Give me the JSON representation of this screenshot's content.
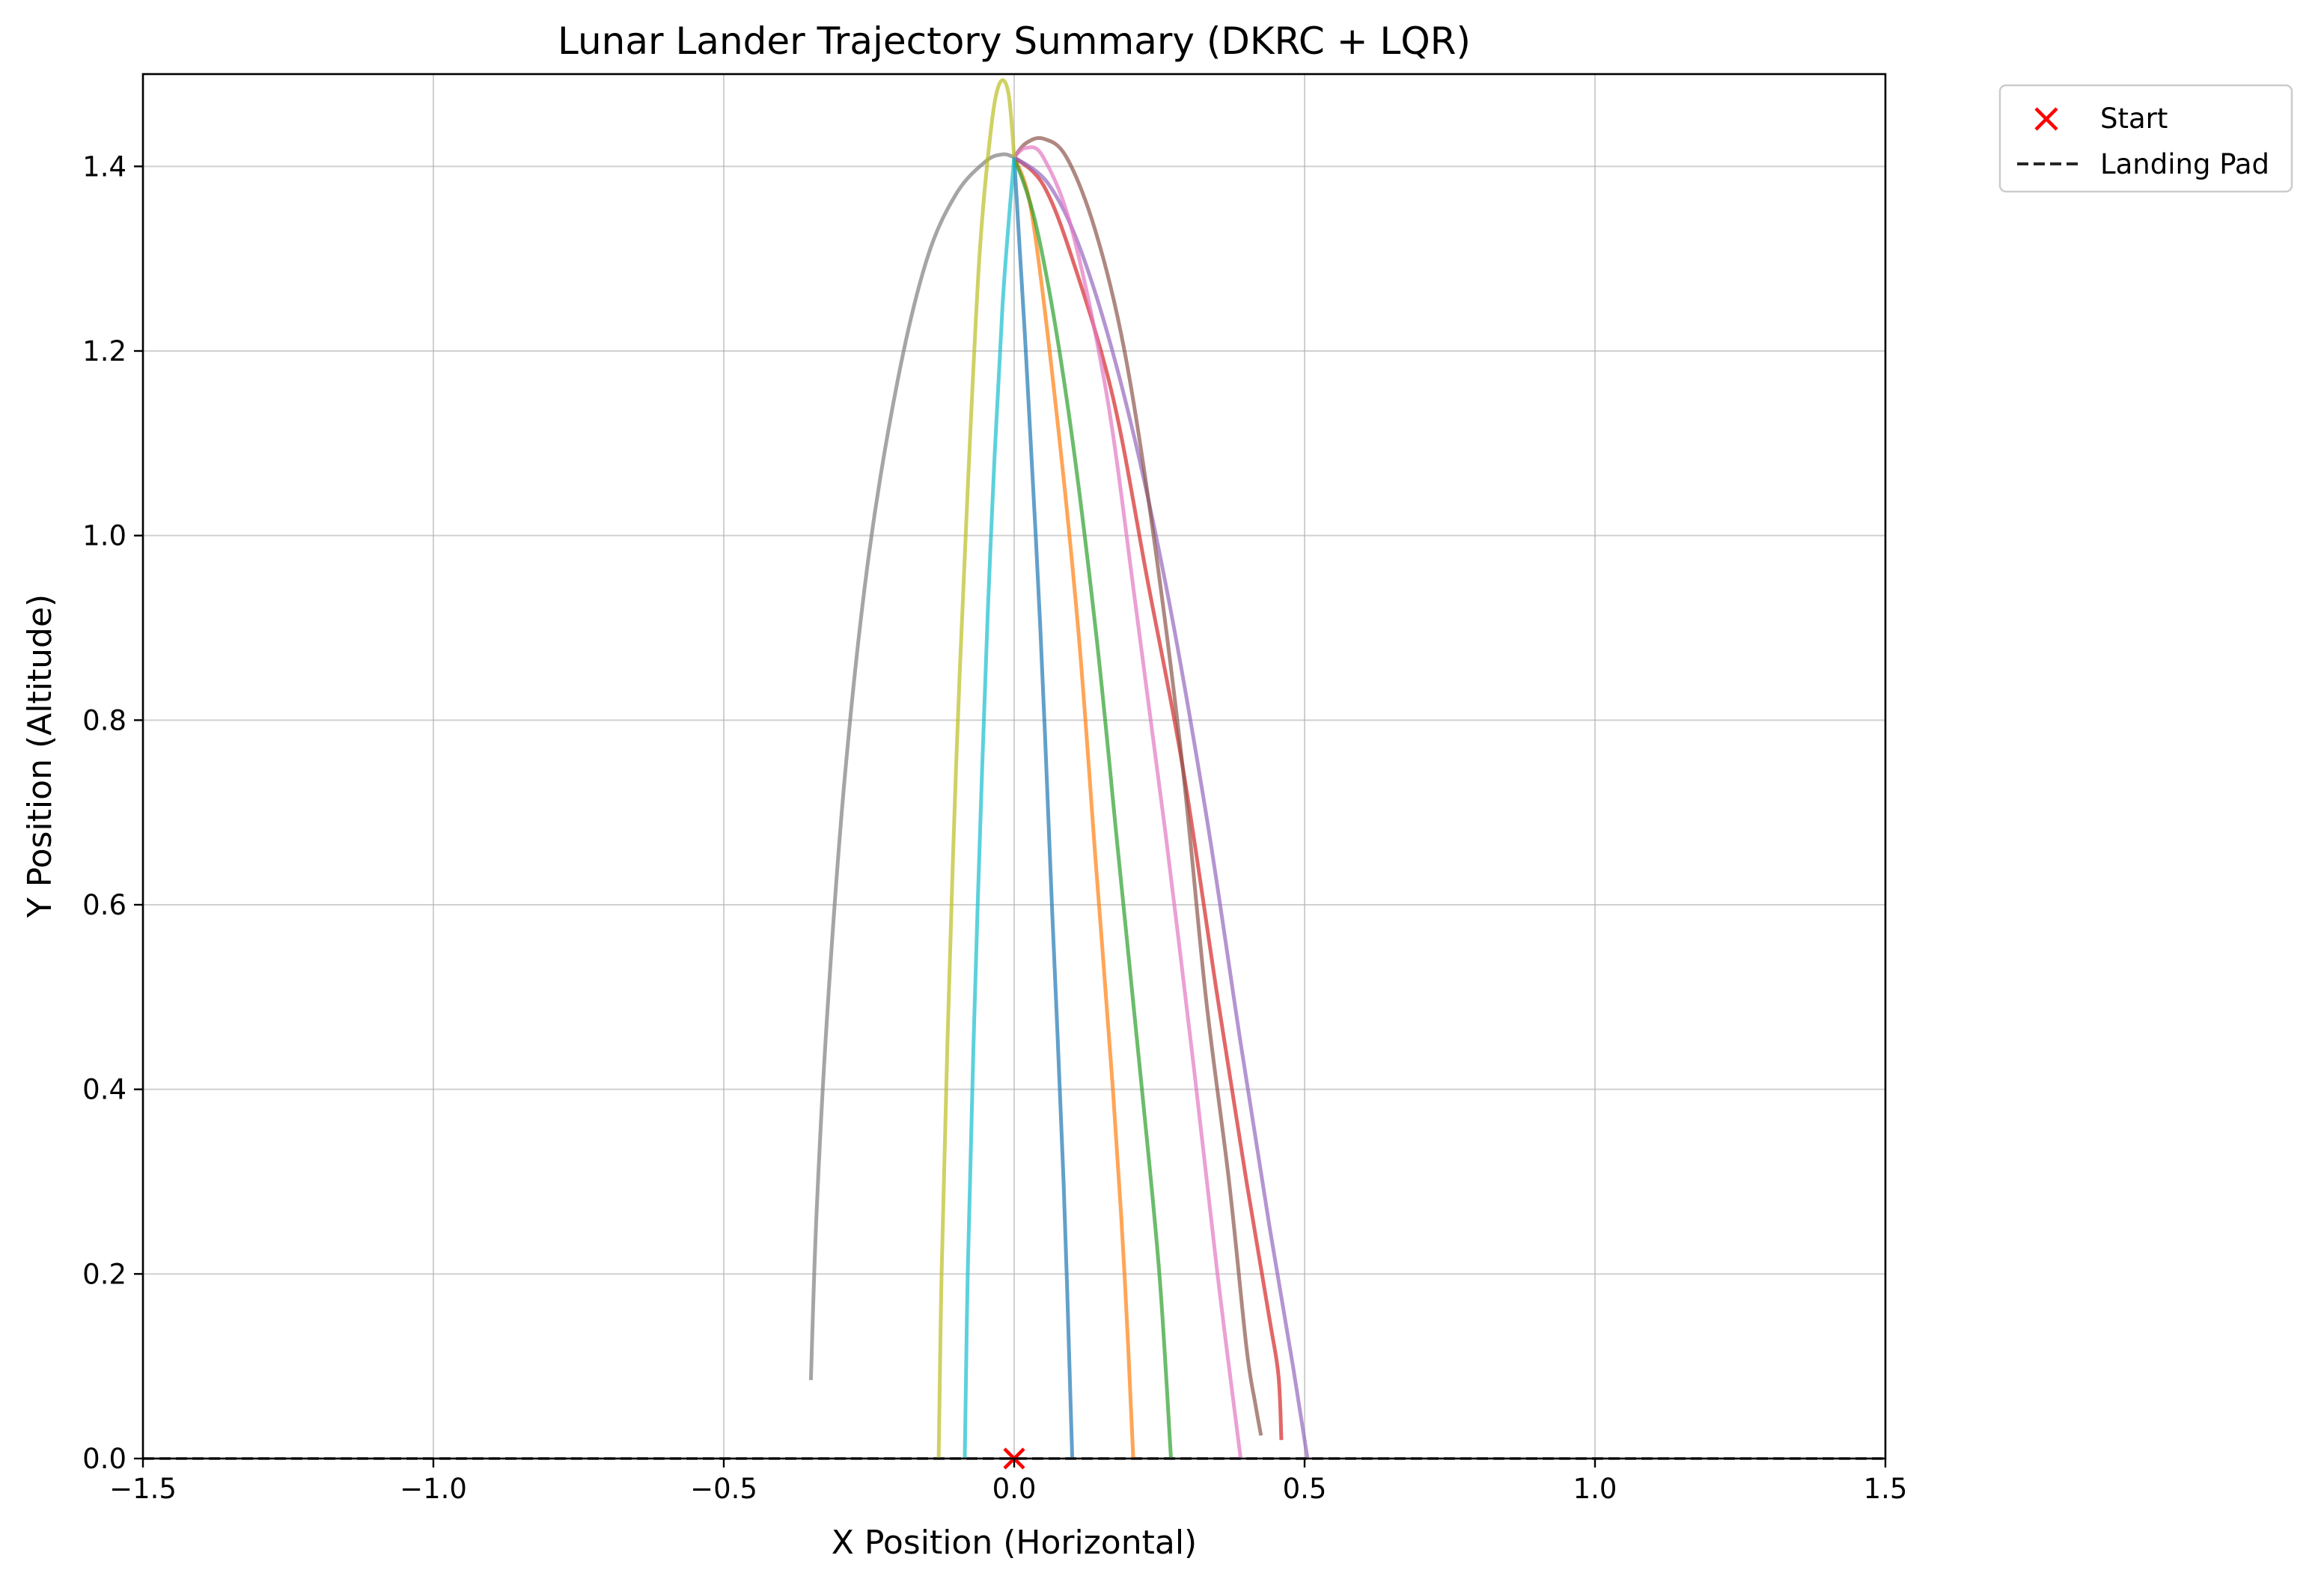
{
  "chart_data": {
    "type": "line",
    "title": "Lunar Lander Trajectory Summary (DKRC + LQR)",
    "xlabel": "X Position (Horizontal)",
    "ylabel": "Y Position (Altitude)",
    "xlim": [
      -1.5,
      1.5
    ],
    "ylim": [
      0.0,
      1.5
    ],
    "x_ticks": [
      -1.5,
      -1.0,
      -0.5,
      0.0,
      0.5,
      1.0,
      1.5
    ],
    "x_tick_labels": [
      "−1.5",
      "−1.0",
      "−0.5",
      "0.0",
      "0.5",
      "1.0",
      "1.5"
    ],
    "y_ticks": [
      0.0,
      0.2,
      0.4,
      0.6,
      0.8,
      1.0,
      1.2,
      1.4
    ],
    "y_tick_labels": [
      "0.0",
      "0.2",
      "0.4",
      "0.6",
      "0.8",
      "1.0",
      "1.2",
      "1.4"
    ],
    "grid": true,
    "legend": {
      "placement": "outside-top-right",
      "entries": [
        {
          "label": "Start",
          "marker": "x",
          "color": "#ff0000"
        },
        {
          "label": "Landing Pad",
          "line": "dashed",
          "color": "#262626"
        }
      ]
    },
    "start_point": {
      "x": 0.0,
      "y": 0.0,
      "color": "#ff0000"
    },
    "landing_pad": {
      "y": 0.0,
      "x": [
        -1.5,
        1.5
      ],
      "color": "#262626"
    },
    "series": [
      {
        "color": "#1f77b4",
        "points": [
          [
            0.0,
            1.41
          ],
          [
            0.02,
            1.2
          ],
          [
            0.045,
            0.9
          ],
          [
            0.065,
            0.6
          ],
          [
            0.085,
            0.3
          ],
          [
            0.1,
            0.0
          ]
        ]
      },
      {
        "color": "#ff7f0e",
        "points": [
          [
            0.0,
            1.41
          ],
          [
            0.03,
            1.35
          ],
          [
            0.07,
            1.15
          ],
          [
            0.11,
            0.9
          ],
          [
            0.14,
            0.65
          ],
          [
            0.17,
            0.4
          ],
          [
            0.19,
            0.2
          ],
          [
            0.205,
            0.0
          ]
        ]
      },
      {
        "color": "#2ca02c",
        "points": [
          [
            0.0,
            1.41
          ],
          [
            0.04,
            1.33
          ],
          [
            0.09,
            1.15
          ],
          [
            0.14,
            0.9
          ],
          [
            0.18,
            0.65
          ],
          [
            0.22,
            0.4
          ],
          [
            0.25,
            0.2
          ],
          [
            0.27,
            0.0
          ]
        ]
      },
      {
        "color": "#d62728",
        "points": [
          [
            0.0,
            1.41
          ],
          [
            0.05,
            1.38
          ],
          [
            0.1,
            1.3
          ],
          [
            0.17,
            1.15
          ],
          [
            0.23,
            0.95
          ],
          [
            0.29,
            0.75
          ],
          [
            0.35,
            0.5
          ],
          [
            0.4,
            0.3
          ],
          [
            0.44,
            0.15
          ],
          [
            0.455,
            0.09
          ],
          [
            0.46,
            0.02
          ]
        ]
      },
      {
        "color": "#9467bd",
        "points": [
          [
            0.0,
            1.41
          ],
          [
            0.06,
            1.38
          ],
          [
            0.12,
            1.3
          ],
          [
            0.19,
            1.15
          ],
          [
            0.26,
            0.95
          ],
          [
            0.33,
            0.7
          ],
          [
            0.39,
            0.45
          ],
          [
            0.44,
            0.25
          ],
          [
            0.48,
            0.1
          ],
          [
            0.505,
            0.0
          ]
        ]
      },
      {
        "color": "#8c564b",
        "points": [
          [
            0.0,
            1.41
          ],
          [
            0.02,
            1.425
          ],
          [
            0.05,
            1.43
          ],
          [
            0.09,
            1.41
          ],
          [
            0.14,
            1.33
          ],
          [
            0.19,
            1.2
          ],
          [
            0.24,
            1.0
          ],
          [
            0.29,
            0.75
          ],
          [
            0.33,
            0.5
          ],
          [
            0.37,
            0.3
          ],
          [
            0.4,
            0.12
          ],
          [
            0.415,
            0.06
          ],
          [
            0.425,
            0.025
          ]
        ]
      },
      {
        "color": "#e377c2",
        "points": [
          [
            0.0,
            1.41
          ],
          [
            0.02,
            1.42
          ],
          [
            0.05,
            1.41
          ],
          [
            0.1,
            1.33
          ],
          [
            0.16,
            1.15
          ],
          [
            0.21,
            0.92
          ],
          [
            0.26,
            0.68
          ],
          [
            0.31,
            0.42
          ],
          [
            0.35,
            0.2
          ],
          [
            0.39,
            0.0
          ]
        ]
      },
      {
        "color": "#7f7f7f",
        "points": [
          [
            0.0,
            1.41
          ],
          [
            -0.02,
            1.413
          ],
          [
            -0.05,
            1.405
          ],
          [
            -0.1,
            1.37
          ],
          [
            -0.15,
            1.3
          ],
          [
            -0.2,
            1.17
          ],
          [
            -0.25,
            0.98
          ],
          [
            -0.29,
            0.75
          ],
          [
            -0.32,
            0.5
          ],
          [
            -0.34,
            0.27
          ],
          [
            -0.35,
            0.085
          ]
        ]
      },
      {
        "color": "#bcbd22",
        "points": [
          [
            0.0,
            1.41
          ],
          [
            -0.01,
            1.48
          ],
          [
            -0.025,
            1.49
          ],
          [
            -0.04,
            1.44
          ],
          [
            -0.06,
            1.3
          ],
          [
            -0.08,
            1.05
          ],
          [
            -0.1,
            0.75
          ],
          [
            -0.115,
            0.45
          ],
          [
            -0.125,
            0.2
          ],
          [
            -0.13,
            0.0
          ]
        ]
      },
      {
        "color": "#17becf",
        "points": [
          [
            0.0,
            1.41
          ],
          [
            -0.02,
            1.25
          ],
          [
            -0.04,
            1.0
          ],
          [
            -0.055,
            0.75
          ],
          [
            -0.07,
            0.45
          ],
          [
            -0.08,
            0.2
          ],
          [
            -0.085,
            0.0
          ]
        ]
      }
    ]
  }
}
